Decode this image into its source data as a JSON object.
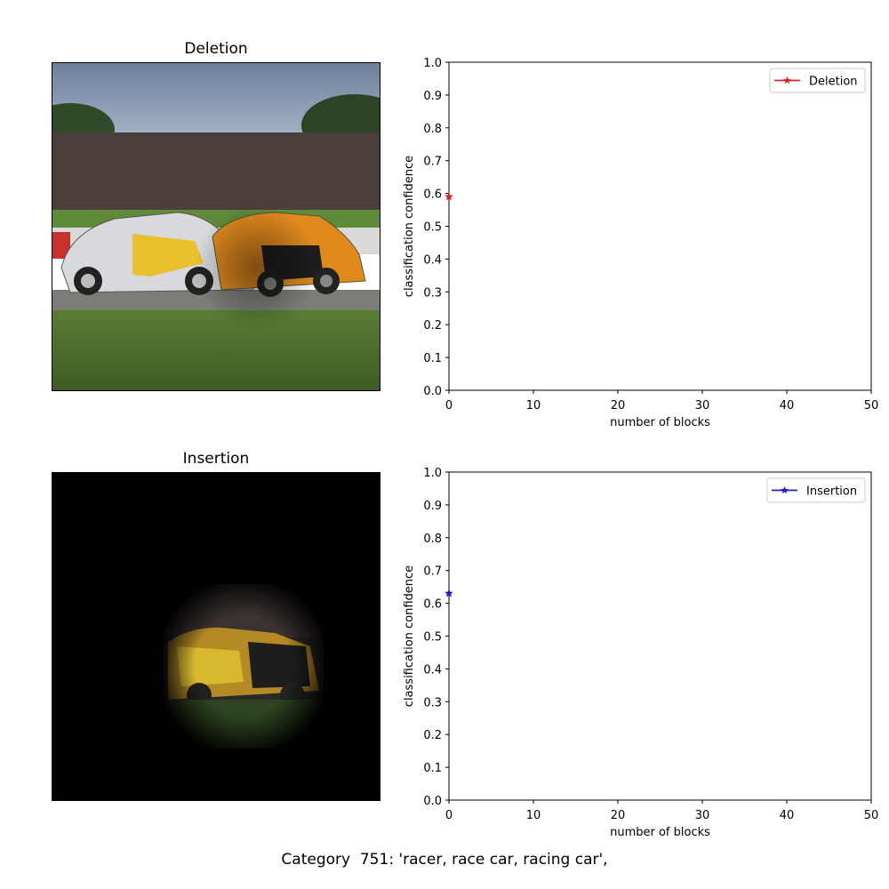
{
  "panels": {
    "deletion": {
      "title": "Deletion"
    },
    "insertion": {
      "title": "Insertion"
    }
  },
  "footer": {
    "caption": "Category  751: 'racer, race car, racing car',"
  },
  "chart_data": [
    {
      "type": "line",
      "xlabel": "number of blocks",
      "ylabel": "classification confidence",
      "xlim": [
        0,
        50
      ],
      "ylim": [
        0,
        1.0
      ],
      "xticks": [
        0,
        10,
        20,
        30,
        40,
        50
      ],
      "yticks": [
        0.0,
        0.1,
        0.2,
        0.3,
        0.4,
        0.5,
        0.6,
        0.7,
        0.8,
        0.9,
        1.0
      ],
      "grid": false,
      "legend": "top-right",
      "series": [
        {
          "name": "Deletion",
          "color": "#d62728",
          "marker": "star",
          "x": [
            0
          ],
          "y": [
            0.59
          ]
        }
      ]
    },
    {
      "type": "line",
      "xlabel": "number of blocks",
      "ylabel": "classification confidence",
      "xlim": [
        0,
        50
      ],
      "ylim": [
        0,
        1.0
      ],
      "xticks": [
        0,
        10,
        20,
        30,
        40,
        50
      ],
      "yticks": [
        0.0,
        0.1,
        0.2,
        0.3,
        0.4,
        0.5,
        0.6,
        0.7,
        0.8,
        0.9,
        1.0
      ],
      "grid": false,
      "legend": "top-right",
      "series": [
        {
          "name": "Insertion",
          "color": "#1f1fcf",
          "marker": "star",
          "x": [
            0
          ],
          "y": [
            0.63
          ]
        }
      ]
    }
  ]
}
